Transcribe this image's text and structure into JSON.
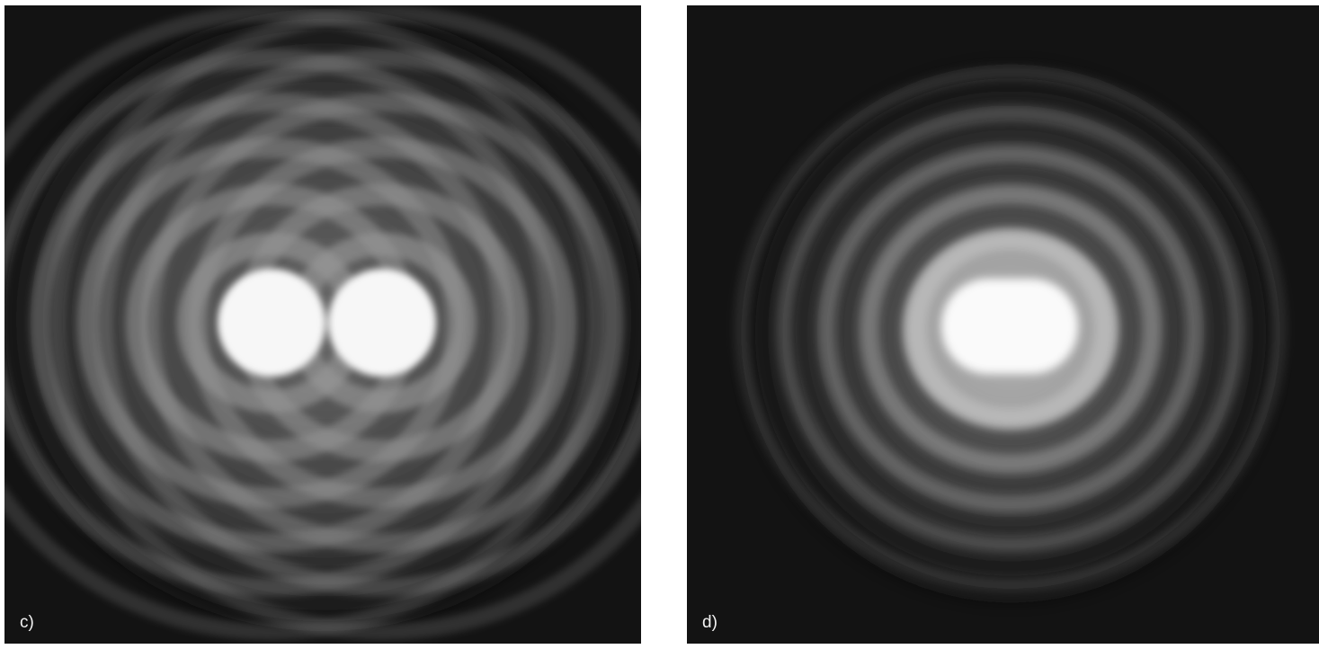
{
  "panels": [
    {
      "id": "c",
      "label": "c)",
      "description_icon": "two-resolved-airy-disks"
    },
    {
      "id": "d",
      "label": "d)",
      "description_icon": "two-merged-airy-disks"
    }
  ],
  "colors": {
    "background": "#131313",
    "ring": "#8a8a8a",
    "core": "#ffffff",
    "page": "#ffffff"
  }
}
